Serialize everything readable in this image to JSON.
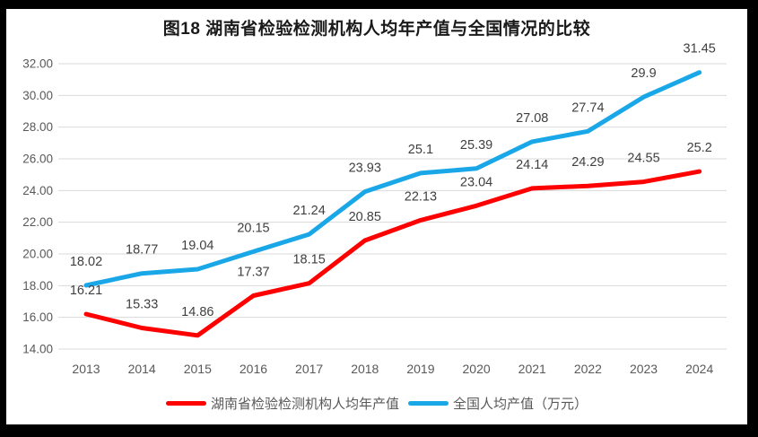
{
  "chart_data": {
    "type": "line",
    "title": "图18 湖南省检验检测机构人均年产值与全国情况的比较",
    "categories": [
      "2013",
      "2014",
      "2015",
      "2016",
      "2017",
      "2018",
      "2019",
      "2020",
      "2021",
      "2022",
      "2023",
      "2024"
    ],
    "series": [
      {
        "name": "湖南省检验检测机构人均年产值",
        "color": "#fe0000",
        "values": [
          16.21,
          15.33,
          14.86,
          17.37,
          18.15,
          20.85,
          22.13,
          23.04,
          24.14,
          24.29,
          24.55,
          25.2
        ],
        "labels": [
          "16.21",
          "15.33",
          "14.86",
          "17.37",
          "18.15",
          "20.85",
          "22.13",
          "23.04",
          "24.14",
          "24.29",
          "24.55",
          "25.2"
        ]
      },
      {
        "name": "全国人均产值（万元）",
        "color": "#1aa7e8",
        "values": [
          18.02,
          18.77,
          19.04,
          20.15,
          21.24,
          23.93,
          25.1,
          25.39,
          27.08,
          27.74,
          29.9,
          31.45
        ],
        "labels": [
          "18.02",
          "18.77",
          "19.04",
          "20.15",
          "21.24",
          "23.93",
          "25.1",
          "25.39",
          "27.08",
          "27.74",
          "29.9",
          "31.45"
        ]
      }
    ],
    "y_axis": {
      "min": 14,
      "max": 32,
      "step": 2,
      "tick_labels": [
        "14.00",
        "16.00",
        "18.00",
        "20.00",
        "22.00",
        "24.00",
        "26.00",
        "28.00",
        "30.00",
        "32.00"
      ]
    },
    "grid": true,
    "legend_position": "bottom",
    "data_labels": "above",
    "colors": {
      "frame": "#000000",
      "background": "#ffffff",
      "gridline": "#d9d9d9",
      "axis_text": "#595959",
      "data_label_text": "#3f3f3f",
      "title_text": "#1a1a1a"
    }
  }
}
